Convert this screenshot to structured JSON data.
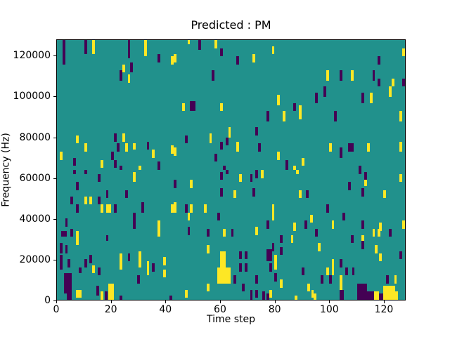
{
  "chart_data": {
    "type": "heatmap",
    "title": "Predicted : PM",
    "xlabel": "Time step",
    "ylabel": "Frequency (Hz)",
    "x_ticks": [
      0,
      20,
      40,
      60,
      80,
      100,
      120
    ],
    "y_ticks": [
      0,
      20000,
      40000,
      60000,
      80000,
      100000,
      120000
    ],
    "x_range": [
      0,
      128
    ],
    "y_range": [
      0,
      128000
    ],
    "bins": 128,
    "grid": false,
    "legend": "none",
    "colors": {
      "background": "#21918c",
      "low": "#440154",
      "high": "#fde725",
      "text": "#000000"
    },
    "mark_format": "[time_step, freq_bin_bottom(1bin=1000Hz), width_bins, height_bins, color(p=purple|y=yellow)]",
    "marks": [
      [
        2,
        116,
        1,
        12,
        "p"
      ],
      [
        10,
        121,
        1,
        7,
        "p"
      ],
      [
        13,
        121,
        1,
        7,
        "y"
      ],
      [
        26,
        119,
        1,
        9,
        "p"
      ],
      [
        32,
        120,
        1,
        8,
        "y"
      ],
      [
        37,
        117,
        1,
        4,
        "p"
      ],
      [
        42,
        116,
        1,
        4,
        "y"
      ],
      [
        24,
        112,
        1,
        4,
        "y"
      ],
      [
        27,
        112,
        1,
        5,
        "p"
      ],
      [
        23,
        108,
        1,
        5,
        "p"
      ],
      [
        26,
        107,
        1,
        4,
        "y"
      ],
      [
        52,
        123,
        1,
        5,
        "p"
      ],
      [
        58,
        124,
        1,
        4,
        "y"
      ],
      [
        48,
        126,
        1,
        2,
        "y"
      ],
      [
        60,
        120,
        1,
        4,
        "p"
      ],
      [
        79,
        121,
        1,
        4,
        "y"
      ],
      [
        66,
        116,
        1,
        4,
        "p"
      ],
      [
        72,
        117,
        1,
        4,
        "y"
      ],
      [
        43,
        117,
        1,
        4,
        "y"
      ],
      [
        57,
        108,
        1,
        5,
        "p"
      ],
      [
        81,
        96,
        1,
        5,
        "y"
      ],
      [
        46,
        93,
        1,
        4,
        "y"
      ],
      [
        49,
        93,
        2,
        5,
        "p"
      ],
      [
        60,
        93,
        1,
        4,
        "y"
      ],
      [
        77,
        88,
        1,
        5,
        "p"
      ],
      [
        83,
        88,
        1,
        5,
        "y"
      ],
      [
        127,
        120,
        1,
        4,
        "y"
      ],
      [
        118,
        116,
        1,
        4,
        "p"
      ],
      [
        99,
        108,
        1,
        5,
        "y"
      ],
      [
        104,
        108,
        1,
        5,
        "p"
      ],
      [
        108,
        108,
        1,
        5,
        "y"
      ],
      [
        116,
        108,
        1,
        5,
        "p"
      ],
      [
        118,
        105,
        1,
        4,
        "p"
      ],
      [
        123,
        105,
        1,
        4,
        "y"
      ],
      [
        127,
        105,
        1,
        4,
        "p"
      ],
      [
        122,
        100,
        1,
        5,
        "y"
      ],
      [
        98,
        100,
        1,
        5,
        "p"
      ],
      [
        95,
        97,
        1,
        5,
        "p"
      ],
      [
        112,
        97,
        1,
        5,
        "p"
      ],
      [
        115,
        97,
        1,
        5,
        "y"
      ],
      [
        87,
        93,
        1,
        4,
        "p"
      ],
      [
        89,
        89,
        1,
        7,
        "y"
      ],
      [
        102,
        88,
        1,
        5,
        "p"
      ],
      [
        126,
        88,
        1,
        5,
        "y"
      ],
      [
        63,
        80,
        1,
        5,
        "y"
      ],
      [
        73,
        81,
        1,
        4,
        "p"
      ],
      [
        47,
        77,
        1,
        4,
        "p"
      ],
      [
        56,
        77,
        1,
        5,
        "y"
      ],
      [
        62,
        76,
        1,
        4,
        "p"
      ],
      [
        60,
        74,
        1,
        4,
        "p"
      ],
      [
        66,
        73,
        1,
        5,
        "y"
      ],
      [
        74,
        73,
        1,
        4,
        "p"
      ],
      [
        43,
        71,
        1,
        4,
        "y"
      ],
      [
        58,
        68,
        1,
        4,
        "p"
      ],
      [
        81,
        69,
        1,
        4,
        "y"
      ],
      [
        84,
        64,
        1,
        5,
        "p"
      ],
      [
        61,
        64,
        1,
        2,
        "p"
      ],
      [
        100,
        73,
        1,
        4,
        "y"
      ],
      [
        104,
        70,
        1,
        5,
        "p"
      ],
      [
        107,
        73,
        2,
        4,
        "p"
      ],
      [
        114,
        73,
        1,
        4,
        "y"
      ],
      [
        126,
        73,
        1,
        5,
        "y"
      ],
      [
        90,
        66,
        1,
        4,
        "y"
      ],
      [
        87,
        64,
        1,
        2,
        "y"
      ],
      [
        111,
        64,
        1,
        2,
        "p"
      ],
      [
        7,
        77,
        1,
        4,
        "y"
      ],
      [
        21,
        78,
        1,
        4,
        "p"
      ],
      [
        24,
        78,
        1,
        4,
        "y"
      ],
      [
        10,
        73,
        1,
        4,
        "y"
      ],
      [
        22,
        73,
        1,
        4,
        "p"
      ],
      [
        25,
        73,
        1,
        4,
        "y"
      ],
      [
        28,
        74,
        1,
        3,
        "y"
      ],
      [
        33,
        74,
        1,
        4,
        "p"
      ],
      [
        1,
        69,
        1,
        4,
        "y"
      ],
      [
        20,
        69,
        1,
        4,
        "p"
      ],
      [
        35,
        70,
        1,
        4,
        "y"
      ],
      [
        42,
        72,
        1,
        4,
        "y"
      ],
      [
        6,
        66,
        1,
        4,
        "p"
      ],
      [
        16,
        65,
        1,
        4,
        "y"
      ],
      [
        21,
        65,
        1,
        4,
        "p"
      ],
      [
        23,
        64,
        1,
        2,
        "p"
      ],
      [
        30,
        64,
        1,
        2,
        "y"
      ],
      [
        37,
        64,
        1,
        4,
        "p"
      ],
      [
        6,
        62,
        1,
        2,
        "p"
      ],
      [
        10,
        62,
        1,
        2,
        "p"
      ],
      [
        15,
        58,
        1,
        4,
        "p"
      ],
      [
        28,
        58,
        1,
        5,
        "y"
      ],
      [
        7,
        54,
        1,
        4,
        "p"
      ],
      [
        18,
        50,
        1,
        4,
        "p"
      ],
      [
        25,
        50,
        1,
        4,
        "p"
      ],
      [
        5,
        47,
        1,
        4,
        "p"
      ],
      [
        10,
        47,
        1,
        4,
        "y"
      ],
      [
        12,
        47,
        1,
        4,
        "y"
      ],
      [
        15,
        47,
        1,
        4,
        "p"
      ],
      [
        7,
        43,
        1,
        4,
        "p"
      ],
      [
        16,
        43,
        1,
        4,
        "y"
      ],
      [
        18,
        43,
        1,
        4,
        "y"
      ],
      [
        19,
        43,
        1,
        4,
        "y"
      ],
      [
        21,
        43,
        1,
        4,
        "p"
      ],
      [
        31,
        43,
        1,
        5,
        "p"
      ],
      [
        42,
        43,
        1,
        4,
        "y"
      ],
      [
        28,
        39,
        1,
        4,
        "p"
      ],
      [
        3,
        36,
        1,
        4,
        "p"
      ],
      [
        28,
        35,
        1,
        4,
        "p"
      ],
      [
        37,
        31,
        1,
        8,
        "y"
      ],
      [
        1.5,
        31,
        2,
        3,
        "p"
      ],
      [
        5,
        31,
        1,
        4,
        "p"
      ],
      [
        7,
        27,
        1,
        7,
        "y"
      ],
      [
        18,
        29,
        1,
        3,
        "p"
      ],
      [
        1,
        25,
        1,
        3,
        "p"
      ],
      [
        1,
        23,
        1,
        4,
        "p"
      ],
      [
        3,
        23,
        1,
        4,
        "p"
      ],
      [
        1,
        19,
        1,
        3,
        "p"
      ],
      [
        4,
        16,
        1,
        4,
        "p"
      ],
      [
        10,
        16,
        1,
        4,
        "p"
      ],
      [
        12,
        18,
        1,
        4,
        "p"
      ],
      [
        1,
        15,
        1,
        4,
        "p"
      ],
      [
        8,
        13,
        1,
        3,
        "p"
      ],
      [
        13,
        13,
        1,
        4,
        "y"
      ],
      [
        15,
        12,
        1,
        4,
        "p"
      ],
      [
        23,
        15,
        1,
        8,
        "y"
      ],
      [
        26,
        19,
        1,
        4,
        "p"
      ],
      [
        30,
        16,
        1,
        8,
        "y"
      ],
      [
        33,
        12,
        1,
        7,
        "y"
      ],
      [
        35,
        14,
        1,
        4,
        "p"
      ],
      [
        39,
        17,
        1,
        4,
        "y"
      ],
      [
        39,
        11,
        1,
        4,
        "y"
      ],
      [
        29.5,
        8,
        1,
        4,
        "p"
      ],
      [
        2.5,
        3,
        3,
        10,
        "p"
      ],
      [
        3.5,
        0,
        2,
        3,
        "p"
      ],
      [
        7,
        1,
        2,
        4,
        "y"
      ],
      [
        14.5,
        2,
        1,
        5,
        "p"
      ],
      [
        16,
        0,
        1,
        4,
        "y"
      ],
      [
        17.5,
        0,
        1,
        4,
        "p"
      ],
      [
        19,
        0,
        2,
        8,
        "y"
      ],
      [
        23,
        0,
        1,
        2,
        "p"
      ],
      [
        41.5,
        0,
        1,
        2,
        "p"
      ],
      [
        62,
        62,
        1,
        2,
        "p"
      ],
      [
        60,
        59,
        1,
        4,
        "p"
      ],
      [
        67,
        58,
        1,
        4,
        "y"
      ],
      [
        71,
        58,
        1,
        4,
        "p"
      ],
      [
        73,
        60,
        1,
        4,
        "p"
      ],
      [
        75,
        60,
        1,
        4,
        "y"
      ],
      [
        43,
        55,
        1,
        4,
        "p"
      ],
      [
        49,
        55,
        1,
        4,
        "y"
      ],
      [
        60,
        51,
        1,
        4,
        "p"
      ],
      [
        65,
        50,
        1,
        4,
        "y"
      ],
      [
        72,
        51,
        1,
        4,
        "p"
      ],
      [
        43,
        43,
        1,
        5,
        "y"
      ],
      [
        47,
        43,
        1,
        4,
        "p"
      ],
      [
        49,
        43,
        1,
        4,
        "y"
      ],
      [
        54,
        43,
        1,
        4,
        "y"
      ],
      [
        48,
        39,
        1,
        4,
        "y"
      ],
      [
        59,
        39,
        1,
        4,
        "p"
      ],
      [
        79,
        39,
        1,
        8,
        "y"
      ],
      [
        77,
        35,
        1,
        4,
        "p"
      ],
      [
        48,
        32,
        1,
        4,
        "p"
      ],
      [
        55,
        31,
        1,
        4,
        "p"
      ],
      [
        61,
        31,
        1,
        4,
        "y"
      ],
      [
        64,
        31,
        1,
        4,
        "p"
      ],
      [
        73,
        32,
        1,
        4,
        "y"
      ],
      [
        82,
        28,
        1,
        4,
        "p"
      ],
      [
        79,
        24,
        1,
        4,
        "p"
      ],
      [
        55,
        23,
        1,
        4,
        "y"
      ],
      [
        82,
        22,
        1,
        4,
        "p"
      ],
      [
        77,
        19,
        2,
        6,
        "p"
      ],
      [
        67,
        20,
        1,
        4,
        "p"
      ],
      [
        69,
        20,
        1,
        4,
        "p"
      ],
      [
        80,
        17,
        1,
        5,
        "y"
      ],
      [
        60,
        16,
        2,
        8,
        "y"
      ],
      [
        59,
        8,
        5,
        8,
        "y"
      ],
      [
        67,
        14,
        1,
        4,
        "p"
      ],
      [
        69,
        14,
        1,
        4,
        "p"
      ],
      [
        78,
        14,
        1,
        4,
        "p"
      ],
      [
        80,
        15,
        1,
        4,
        "y"
      ],
      [
        65,
        8,
        1,
        4,
        "p"
      ],
      [
        68,
        4,
        1,
        4,
        "p"
      ],
      [
        73,
        8,
        1,
        4,
        "p"
      ],
      [
        80,
        9,
        1,
        4,
        "p"
      ],
      [
        82,
        6,
        1,
        4,
        "y"
      ],
      [
        55,
        4,
        1,
        4,
        "y"
      ],
      [
        71,
        0,
        1,
        5,
        "p"
      ],
      [
        73,
        1,
        1,
        4,
        "p"
      ],
      [
        47,
        1,
        1,
        4,
        "y"
      ],
      [
        75.5,
        0,
        1,
        4,
        "p"
      ],
      [
        77,
        0,
        1,
        3,
        "p"
      ],
      [
        78,
        1,
        1,
        4,
        "y"
      ],
      [
        88,
        62,
        1,
        2,
        "y"
      ],
      [
        111,
        62,
        1,
        2,
        "p"
      ],
      [
        113,
        59,
        1,
        4,
        "p"
      ],
      [
        113,
        56,
        1,
        3,
        "y"
      ],
      [
        126,
        58,
        1,
        4,
        "y"
      ],
      [
        107,
        54,
        1,
        4,
        "p"
      ],
      [
        89,
        50,
        1,
        4,
        "y"
      ],
      [
        91.5,
        50,
        1,
        4,
        "p"
      ],
      [
        112,
        51,
        1,
        4,
        "p"
      ],
      [
        120,
        50,
        1,
        4,
        "y"
      ],
      [
        99,
        43,
        1,
        4,
        "p"
      ],
      [
        105,
        39,
        1,
        4,
        "p"
      ],
      [
        93,
        38,
        1,
        4,
        "y"
      ],
      [
        91,
        35,
        1,
        4,
        "p"
      ],
      [
        87,
        34,
        1,
        4,
        "y"
      ],
      [
        101,
        35,
        1,
        4,
        "y"
      ],
      [
        112,
        35,
        1,
        4,
        "p"
      ],
      [
        118.5,
        34,
        1,
        4,
        "y"
      ],
      [
        127,
        35,
        1,
        4,
        "y"
      ],
      [
        95,
        31,
        1,
        4,
        "p"
      ],
      [
        116,
        31,
        1,
        4,
        "y"
      ],
      [
        118,
        31,
        1,
        4,
        "y"
      ],
      [
        122,
        31,
        1,
        4,
        "p"
      ],
      [
        86,
        28,
        1,
        4,
        "y"
      ],
      [
        108,
        28,
        1,
        4,
        "p"
      ],
      [
        112,
        28,
        1,
        4,
        "y"
      ],
      [
        96,
        24,
        1,
        4,
        "y"
      ],
      [
        112,
        25,
        1,
        4,
        "p"
      ],
      [
        117,
        23,
        1,
        4,
        "y"
      ],
      [
        118.5,
        19,
        1,
        4,
        "y"
      ],
      [
        126,
        20,
        1,
        4,
        "p"
      ],
      [
        101,
        12,
        1,
        8,
        "y"
      ],
      [
        104,
        16,
        1,
        4,
        "p"
      ],
      [
        99,
        12,
        1,
        4,
        "y"
      ],
      [
        90,
        12,
        1,
        4,
        "p"
      ],
      [
        106,
        12,
        1,
        4,
        "p"
      ],
      [
        108.5,
        12,
        1,
        4,
        "p"
      ],
      [
        97,
        8,
        1,
        4,
        "p"
      ],
      [
        100,
        8,
        1,
        4,
        "p"
      ],
      [
        104,
        8,
        1,
        4,
        "y"
      ],
      [
        121,
        8,
        1,
        4,
        "p"
      ],
      [
        124,
        8,
        1,
        4,
        "y"
      ],
      [
        92,
        4,
        1,
        4,
        "y"
      ],
      [
        93.5,
        1,
        1,
        4,
        "y"
      ],
      [
        94.5,
        0,
        1,
        3,
        "y"
      ],
      [
        104,
        4,
        1,
        4,
        "y"
      ],
      [
        104,
        0,
        1.5,
        5,
        "p"
      ],
      [
        110.5,
        0,
        3.5,
        8,
        "p"
      ],
      [
        114,
        0,
        2.5,
        4,
        "p"
      ],
      [
        116.5,
        0,
        2,
        4,
        "y"
      ],
      [
        118.5,
        0,
        1.5,
        3,
        "p"
      ],
      [
        120,
        0,
        4.3,
        7,
        "y"
      ],
      [
        124.5,
        0,
        1,
        4,
        "y"
      ],
      [
        87.5,
        0,
        1,
        2,
        "y"
      ]
    ]
  }
}
